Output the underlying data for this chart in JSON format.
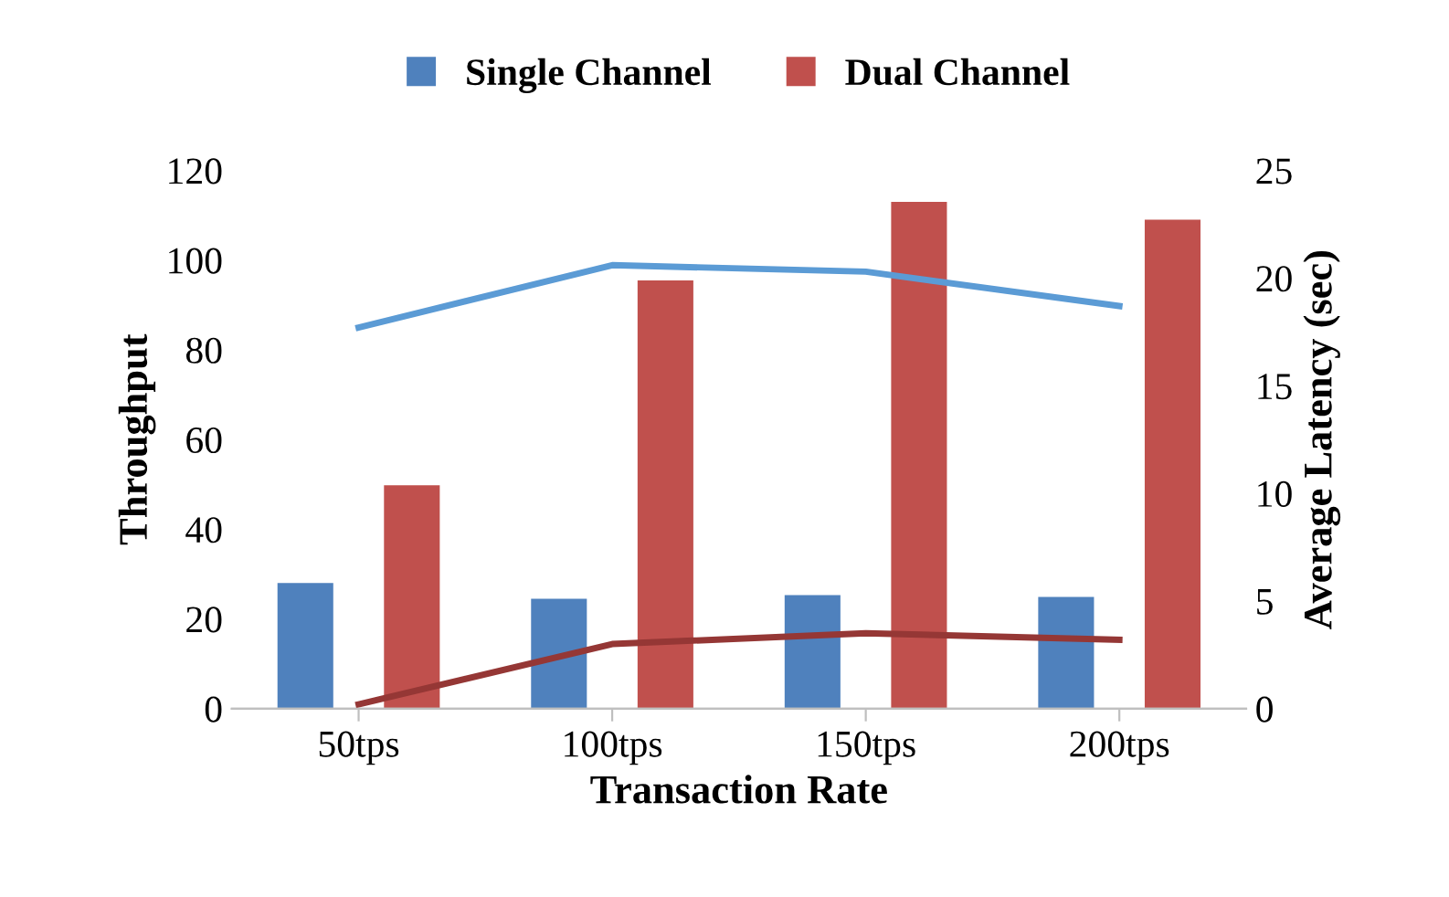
{
  "chart_data": {
    "type": "bar",
    "xlabel": "Transaction Rate",
    "ylabel": "Throughput",
    "y2label": "Average Latency (sec)",
    "categories": [
      "50tps",
      "100tps",
      "150tps",
      "200tps"
    ],
    "series": [
      {
        "name": "Single Channel",
        "color": "#4f81bd",
        "values": [
          28,
          24.5,
          25.3,
          24.9
        ]
      },
      {
        "name": "Dual Channel",
        "color": "#c0504d",
        "values": [
          49.8,
          95.5,
          113,
          109
        ]
      },
      {
        "type": "line",
        "axis": "y2",
        "color": "#5b9bd5",
        "values": [
          17.7,
          20.6,
          20.3,
          18.7
        ]
      },
      {
        "type": "line",
        "axis": "y2",
        "color": "#953735",
        "values": [
          0.2,
          3.0,
          3.5,
          3.2
        ]
      }
    ],
    "ylim": [
      0,
      120
    ],
    "yticks": [
      0,
      20,
      40,
      60,
      80,
      100,
      120
    ],
    "y2lim": [
      0,
      25
    ],
    "y2ticks": [
      0,
      5,
      10,
      15,
      20,
      25
    ],
    "legend": "top",
    "grid": false,
    "marker": "none",
    "line_style": "solid"
  }
}
